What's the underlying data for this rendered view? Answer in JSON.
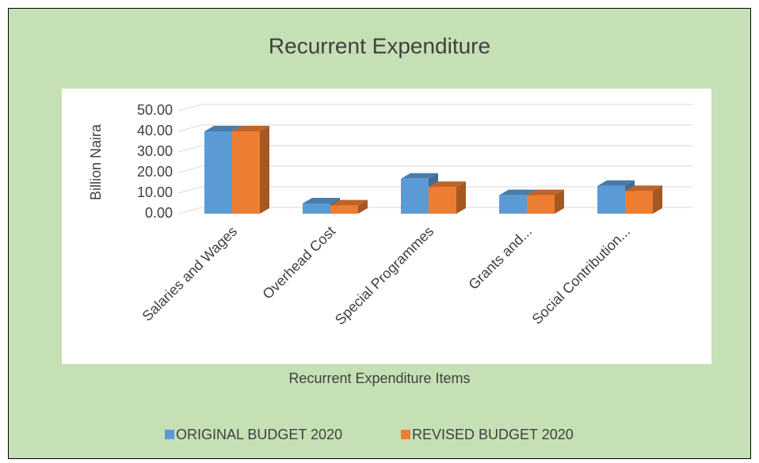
{
  "chart_data": {
    "type": "bar3d",
    "title": "Recurrent Expenditure",
    "x_label": "Recurrent Expenditure Items",
    "y_label": "Billion Naira",
    "categories": [
      "Salaries and Wages",
      "Overhead Cost",
      "Special Programmes",
      "Grants and...",
      "Social Contribution..."
    ],
    "series": [
      {
        "name": "ORIGINAL BUDGET 2020",
        "color": "#5b9bd5",
        "values": [
          40,
          5,
          17,
          9,
          13.5
        ]
      },
      {
        "name": "REVISED BUDGET 2020",
        "color": "#ed7d31",
        "values": [
          40,
          4,
          13,
          9,
          11
        ]
      }
    ],
    "ylim": [
      0,
      50
    ],
    "yticks": [
      {
        "value": 0,
        "label": "0.00"
      },
      {
        "value": 10,
        "label": "10.00"
      },
      {
        "value": 20,
        "label": "20.00"
      },
      {
        "value": 30,
        "label": "30.00"
      },
      {
        "value": 40,
        "label": "40.00"
      },
      {
        "value": 50,
        "label": "50.00"
      }
    ],
    "grid": true,
    "legend": "bottom"
  }
}
